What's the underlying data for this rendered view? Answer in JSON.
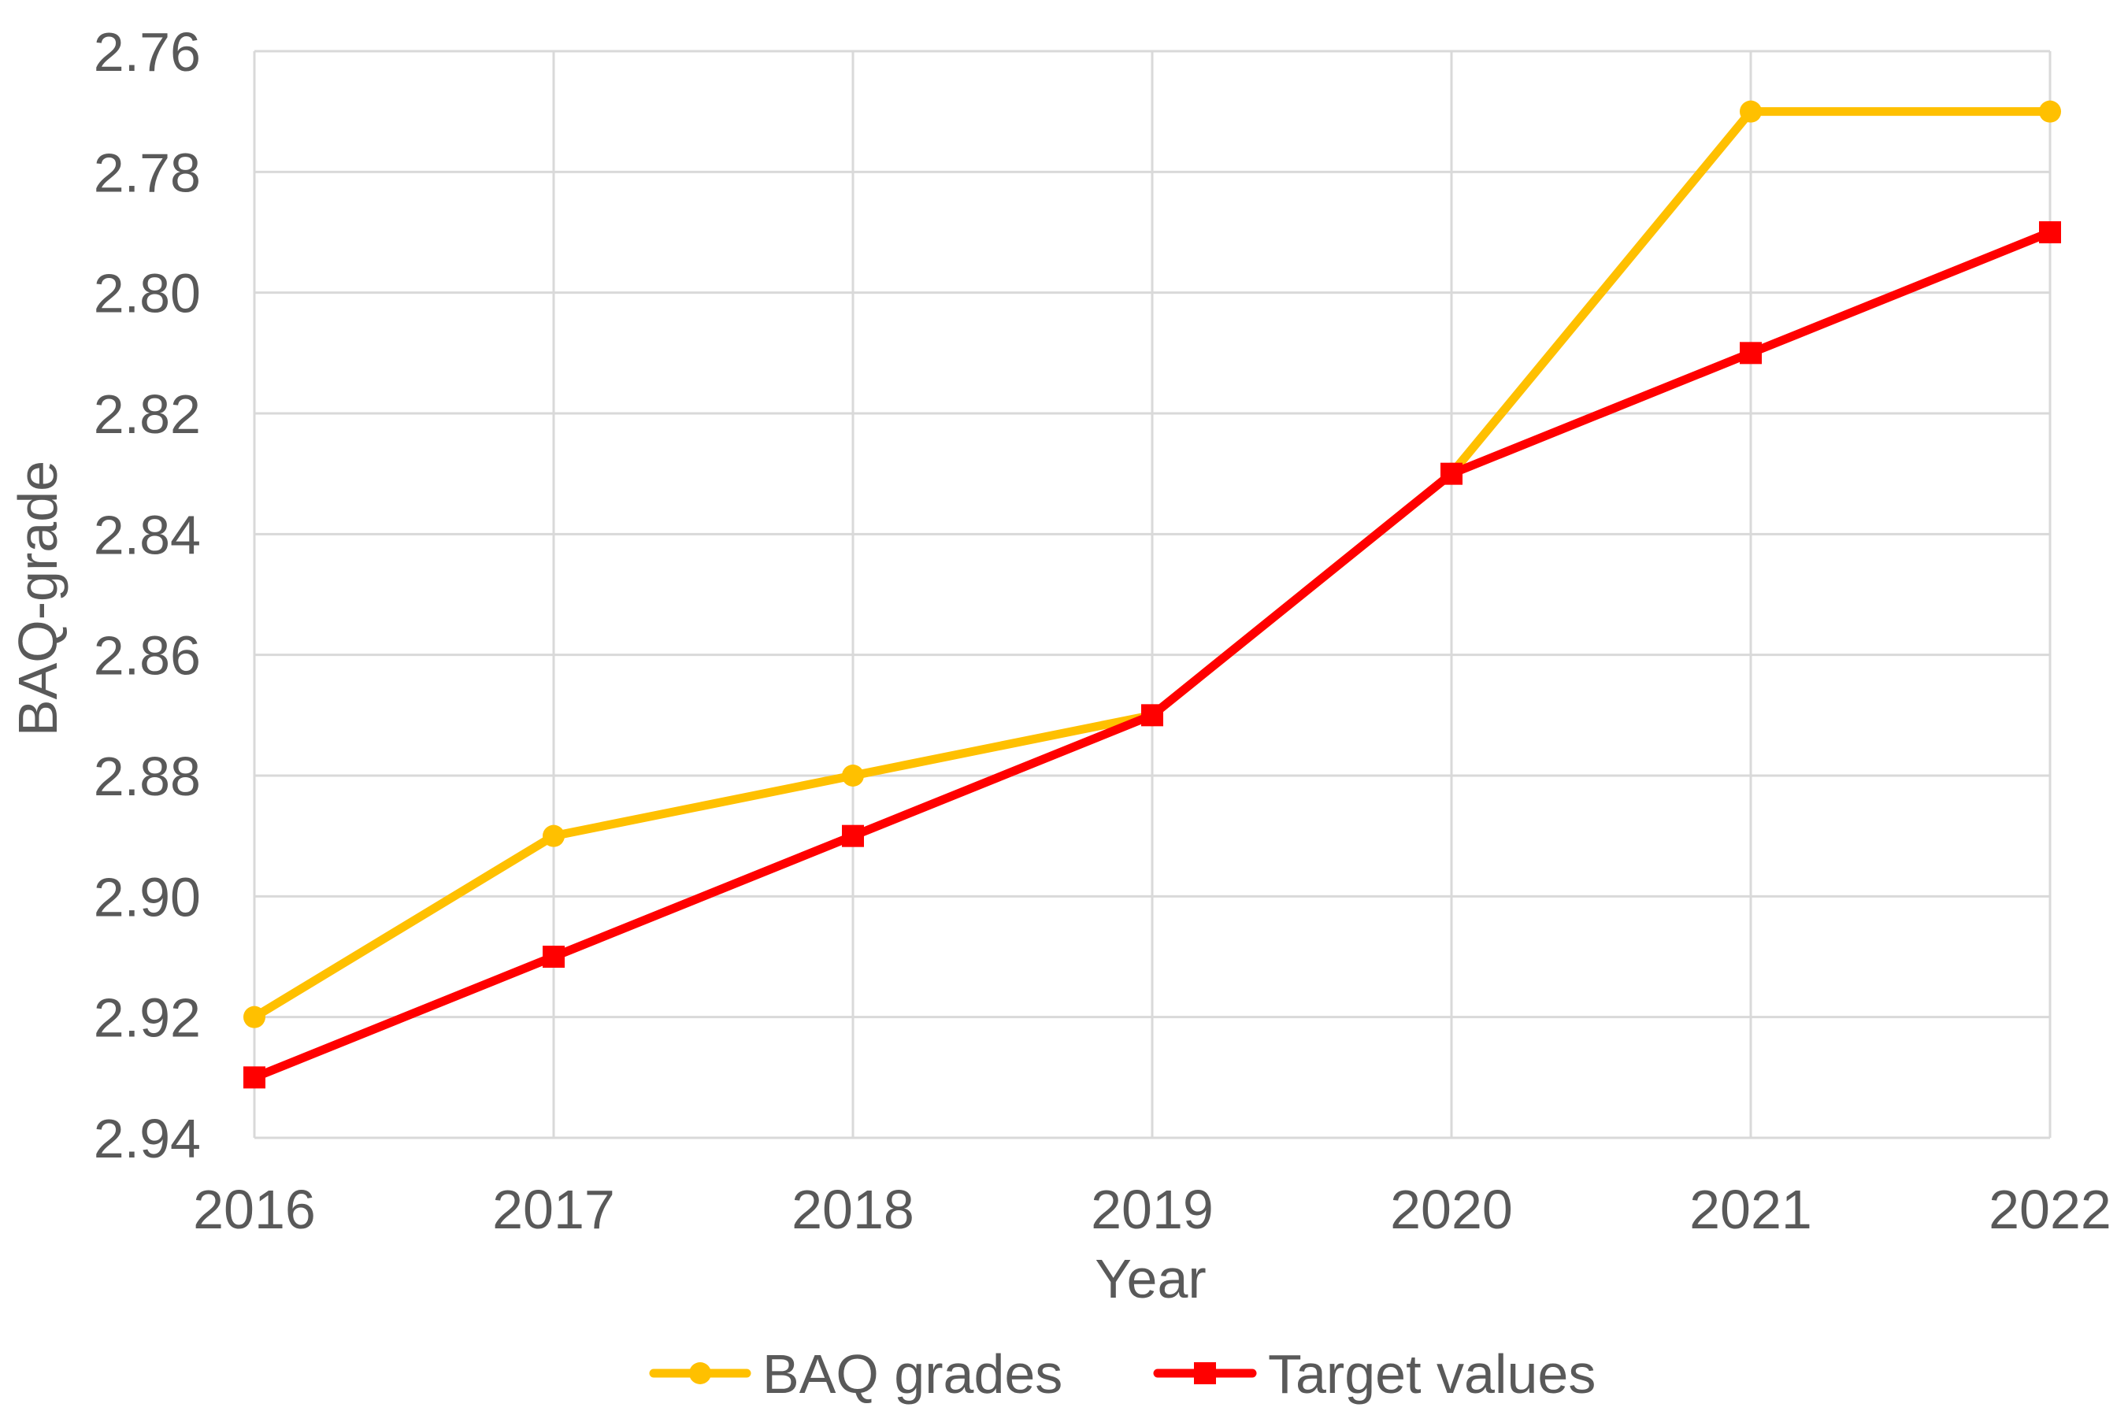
{
  "chart_data": {
    "type": "line",
    "title": "",
    "xlabel": "Year",
    "ylabel": "BAQ-grade",
    "x": [
      "2016",
      "2017",
      "2018",
      "2019",
      "2020",
      "2021",
      "2022"
    ],
    "y_ticks": [
      "2.76",
      "2.78",
      "2.80",
      "2.82",
      "2.84",
      "2.86",
      "2.88",
      "2.90",
      "2.92",
      "2.94"
    ],
    "ylim": [
      2.76,
      2.94
    ],
    "y_inverted": true,
    "grid": true,
    "legend_position": "bottom",
    "series": [
      {
        "name": "BAQ grades",
        "color": "#FFC000",
        "marker": "circle",
        "values": [
          2.92,
          2.89,
          2.88,
          2.87,
          2.83,
          2.77,
          2.77
        ]
      },
      {
        "name": "Target values",
        "color": "#FF0000",
        "marker": "square",
        "values": [
          2.93,
          2.91,
          2.89,
          2.87,
          2.83,
          2.81,
          2.79
        ]
      }
    ]
  }
}
